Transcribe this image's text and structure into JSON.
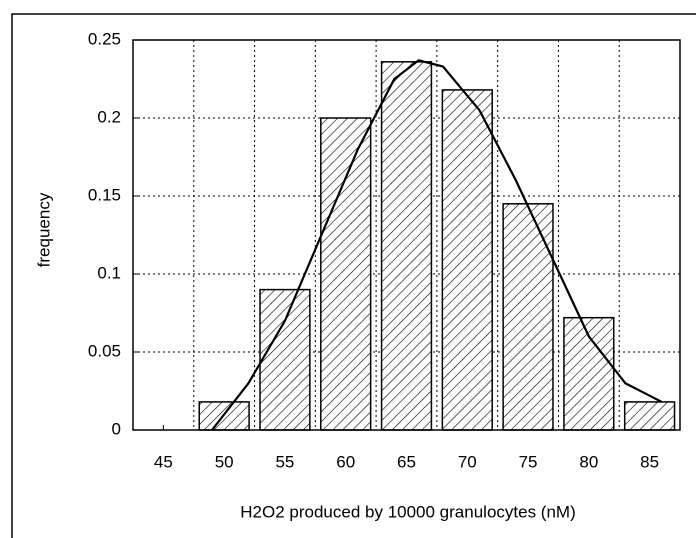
{
  "chart_data": {
    "type": "histogram",
    "xlabel": "H2O2 produced by 10000 granulocytes (nM)",
    "ylabel": "frequency",
    "bins": [
      42.5,
      47.5,
      52.5,
      57.5,
      62.5,
      67.5,
      72.5,
      77.5,
      82.5,
      87.5
    ],
    "values": [
      0,
      0.018,
      0.09,
      0.2,
      0.236,
      0.218,
      0.145,
      0.072,
      0.018
    ],
    "curve": {
      "x": [
        49,
        52,
        55,
        58,
        61,
        64,
        66,
        68,
        71,
        74,
        77,
        80,
        83,
        86
      ],
      "values": [
        0,
        0.03,
        0.07,
        0.125,
        0.18,
        0.225,
        0.237,
        0.233,
        0.205,
        0.16,
        0.11,
        0.06,
        0.03,
        0.018
      ]
    },
    "xlim": [
      42.5,
      87.5
    ],
    "xticks": [
      45,
      50,
      55,
      60,
      65,
      70,
      75,
      80,
      85
    ],
    "ylim": [
      0,
      0.25
    ],
    "yticks": [
      0,
      0.05,
      0.1,
      0.15,
      0.2,
      0.25
    ],
    "grid": true
  }
}
